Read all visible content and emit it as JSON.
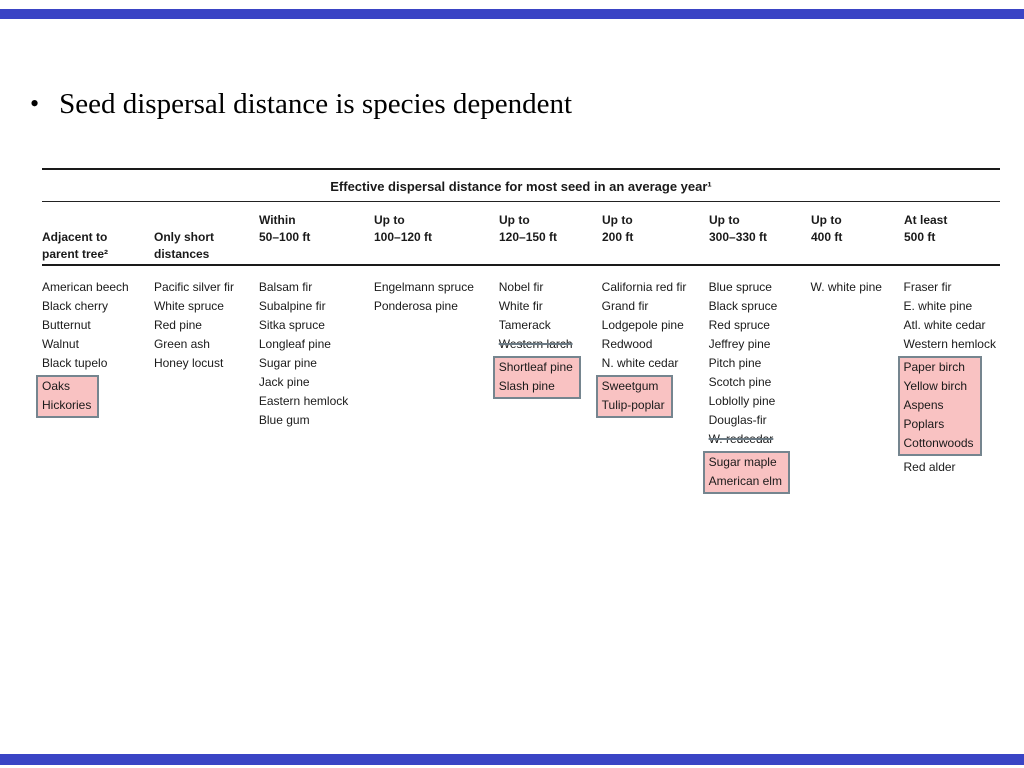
{
  "slide": {
    "bullet_marker": "•",
    "bullet_text": "Seed dispersal distance is species dependent",
    "accent_color": "#3a44c5"
  },
  "table": {
    "title": "Effective dispersal distance for most seed in an average year¹",
    "highlight_fill_color": "#f9c2c2",
    "highlight_border_color": "#75858f",
    "columns": [
      {
        "header": "Adjacent to\nparent tree²",
        "groups": [
          {
            "highlight": false,
            "items": [
              "American beech",
              "Black cherry",
              "Butternut",
              "Walnut",
              "Black tupelo"
            ]
          },
          {
            "highlight": true,
            "items": [
              "Oaks",
              "Hickories"
            ]
          }
        ]
      },
      {
        "header": "Only short\ndistances",
        "groups": [
          {
            "highlight": false,
            "items": [
              "Pacific silver fir",
              "White spruce",
              "Red pine",
              "Green ash",
              "Honey locust"
            ]
          }
        ]
      },
      {
        "header": "Within\n50–100 ft",
        "groups": [
          {
            "highlight": false,
            "items": [
              "Balsam fir",
              "Subalpine fir",
              "Sitka spruce",
              "Longleaf pine",
              "Sugar pine",
              "Jack pine",
              "Eastern hemlock",
              "Blue gum"
            ]
          }
        ]
      },
      {
        "header": "Up to\n100–120 ft",
        "groups": [
          {
            "highlight": false,
            "items": [
              "Engelmann spruce",
              "Ponderosa pine"
            ]
          }
        ]
      },
      {
        "header": "Up to\n120–150 ft",
        "groups": [
          {
            "highlight": false,
            "items": [
              "Nobel fir",
              "White fir",
              "Tamerack",
              {
                "text": "Western larch",
                "struck": true
              }
            ]
          },
          {
            "highlight": true,
            "items": [
              "Shortleaf pine",
              "Slash pine"
            ]
          }
        ]
      },
      {
        "header": "Up to\n200 ft",
        "groups": [
          {
            "highlight": false,
            "items": [
              "California red fir",
              "Grand fir",
              "Lodgepole pine",
              "Redwood",
              "N. white cedar"
            ]
          },
          {
            "highlight": true,
            "items": [
              "Sweetgum",
              "Tulip-poplar"
            ]
          }
        ]
      },
      {
        "header": "Up to\n300–330 ft",
        "groups": [
          {
            "highlight": false,
            "items": [
              "Blue spruce",
              "Black spruce",
              "Red spruce",
              "Jeffrey pine",
              "Pitch pine",
              "Scotch pine",
              "Loblolly pine",
              "Douglas-fir",
              {
                "text": "W. redcedar",
                "struck": true
              }
            ]
          },
          {
            "highlight": true,
            "items": [
              "Sugar maple",
              "American elm"
            ]
          }
        ]
      },
      {
        "header": "Up to\n400 ft",
        "groups": [
          {
            "highlight": false,
            "items": [
              "W. white pine"
            ]
          }
        ]
      },
      {
        "header": "At least\n500 ft",
        "groups": [
          {
            "highlight": false,
            "items": [
              "Fraser fir",
              "E. white pine",
              "Atl. white cedar",
              "Western hemlock"
            ]
          },
          {
            "highlight": true,
            "items": [
              "Paper birch",
              "Yellow birch",
              "Aspens",
              "Poplars",
              "Cottonwoods"
            ]
          },
          {
            "highlight": false,
            "items": [
              "Red alder"
            ]
          }
        ]
      }
    ]
  }
}
